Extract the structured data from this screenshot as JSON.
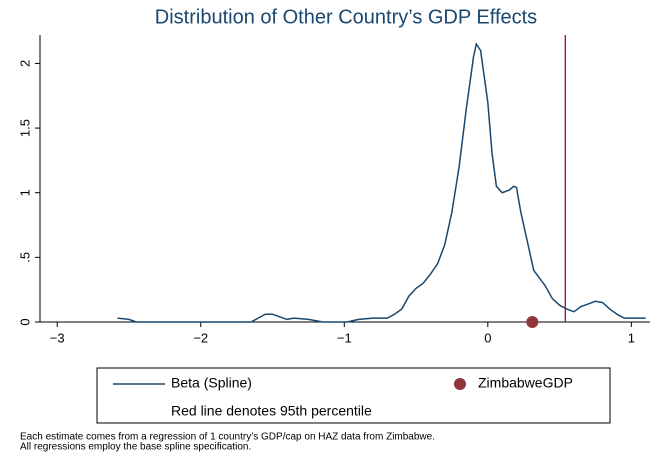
{
  "chart_data": {
    "type": "line",
    "title": "Distribution of Other Country’s GDP Effects",
    "xlim": [
      -3.12,
      1.13
    ],
    "ylim": [
      0,
      2.22
    ],
    "xticks": [
      {
        "value": -3,
        "label": "−3"
      },
      {
        "value": -2,
        "label": "−2"
      },
      {
        "value": -1,
        "label": "−1"
      },
      0,
      1
    ],
    "yticks": [
      0,
      {
        "value": 0.5,
        "label": ".5"
      },
      1,
      1.5,
      2
    ],
    "series": [
      {
        "name": "Beta (Spline)",
        "color": "#1a476f",
        "kind": "line",
        "x": [
          -2.58,
          -2.5,
          -2.45,
          -1.65,
          -1.6,
          -1.55,
          -1.5,
          -1.45,
          -1.4,
          -1.35,
          -1.25,
          -1.15,
          -0.98,
          -0.9,
          -0.8,
          -0.7,
          -0.65,
          -0.6,
          -0.55,
          -0.5,
          -0.45,
          -0.4,
          -0.35,
          -0.3,
          -0.25,
          -0.2,
          -0.15,
          -0.1,
          -0.08,
          -0.05,
          0,
          0.03,
          0.06,
          0.1,
          0.15,
          0.18,
          0.2,
          0.23,
          0.28,
          0.32,
          0.4,
          0.45,
          0.5,
          0.55,
          0.6,
          0.65,
          0.7,
          0.75,
          0.8,
          0.85,
          0.9,
          0.95,
          1.0,
          1.1
        ],
        "values": [
          0.03,
          0.02,
          0,
          0,
          0.03,
          0.06,
          0.06,
          0.04,
          0.02,
          0.03,
          0.02,
          0,
          0,
          0.02,
          0.03,
          0.03,
          0.06,
          0.1,
          0.2,
          0.26,
          0.3,
          0.37,
          0.45,
          0.6,
          0.85,
          1.2,
          1.65,
          2.05,
          2.15,
          2.1,
          1.7,
          1.3,
          1.05,
          1.0,
          1.02,
          1.05,
          1.04,
          0.85,
          0.6,
          0.4,
          0.28,
          0.18,
          0.13,
          0.1,
          0.08,
          0.12,
          0.14,
          0.16,
          0.15,
          0.1,
          0.06,
          0.03,
          0.03,
          0.03
        ]
      },
      {
        "name": "ZimbabweGDP",
        "color": "#90353b",
        "kind": "scatter",
        "x": [
          0.31
        ],
        "values": [
          0
        ]
      }
    ],
    "vline": {
      "value": 0.54,
      "color": "#b0003c"
    },
    "legend_note": "Red line denotes 95th percentile"
  },
  "notes": [
    "Each estimate comes from a regression of 1 country’s GDP/cap on HAZ data from Zimbabwe.",
    "All regressions employ the base spline specification."
  ]
}
